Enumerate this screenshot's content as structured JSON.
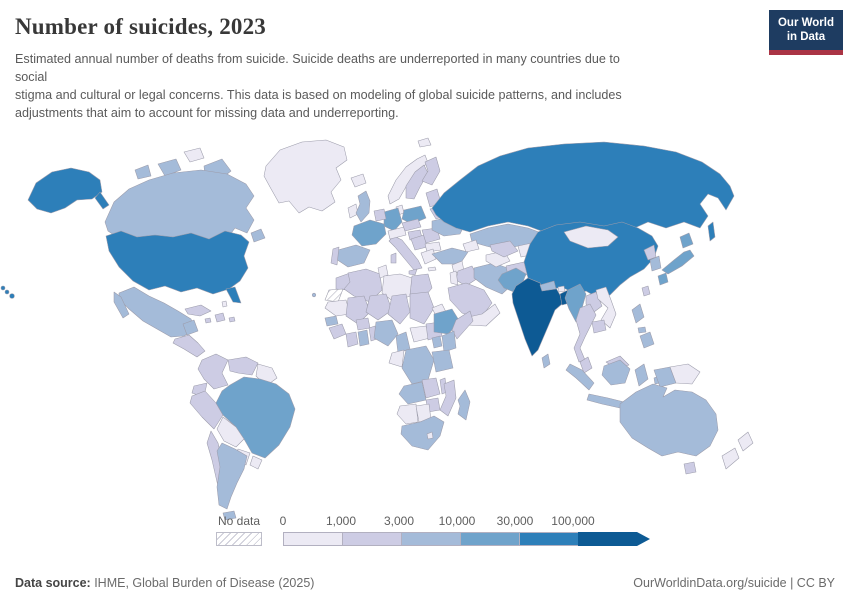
{
  "header": {
    "title": "Number of suicides, 2023",
    "subtitle_lines": [
      "Estimated annual number of deaths from suicide. Suicide deaths are underreported in many countries due to",
      "social",
      "stigma and cultural or legal concerns. This data is based on modeling of global suicide patterns, and includes",
      "adjustments that aim to account for missing data and underreporting."
    ],
    "logo": {
      "line1": "Our World",
      "line2": "in Data",
      "bg": "#1e3c61",
      "accent": "#aa3445"
    }
  },
  "legend": {
    "no_data_label": "No data",
    "tick_labels": [
      "0",
      "1,000",
      "3,000",
      "10,000",
      "30,000",
      "100,000"
    ],
    "bin_colors": [
      "#eceaf4",
      "#cdcce4",
      "#a4bbd9",
      "#6fa3cb",
      "#2d7fb9",
      "#0d5a94"
    ]
  },
  "footer": {
    "source_label": "Data source:",
    "source_text": " IHME, Global Burden of Disease (2025)",
    "right_text": "OurWorldinData.org/suicide | CC BY"
  },
  "chart_data": {
    "type": "choropleth",
    "title": "Number of suicides, 2023",
    "unit": "estimated annual suicide deaths",
    "legend_position": "bottom",
    "bins": [
      {
        "label": "0 – 1,000",
        "color": "#eceaf4"
      },
      {
        "label": "1,000 – 3,000",
        "color": "#cdcce4"
      },
      {
        "label": "3,000 – 10,000",
        "color": "#a4bbd9"
      },
      {
        "label": "10,000 – 30,000",
        "color": "#6fa3cb"
      },
      {
        "label": "30,000 – 100,000",
        "color": "#2d7fb9"
      },
      {
        "label": "100,000+",
        "color": "#0d5a94"
      }
    ],
    "no_data_label": "No data",
    "countries": {
      "greenland": 0,
      "canada": 2,
      "canada-arctic": 2,
      "ellesmere": 0,
      "newfoundland": 2,
      "united-states": 4,
      "mexico": 2,
      "cuba": 1,
      "hispaniola": 1,
      "jamaica": 1,
      "puerto-rico": 1,
      "bahamas": 0,
      "central-america": 1,
      "colombia": 1,
      "venezuela": 1,
      "guyanas": 0,
      "ecuador": 1,
      "peru": 1,
      "brazil": 3,
      "bolivia": 0,
      "paraguay": 0,
      "uruguay": 0,
      "chile": 1,
      "argentina": 2,
      "iceland": 0,
      "ireland": 0,
      "united-kingdom": 2,
      "norway": 0,
      "sweden": 1,
      "finland": 1,
      "denmark": 0,
      "baltics": 1,
      "belarus": 1,
      "poland": 3,
      "germany": 3,
      "benelux": 1,
      "france": 3,
      "spain": 2,
      "portugal": 1,
      "italy": 1,
      "sicily": 1,
      "sardinia": 1,
      "switzerland-austria": 0,
      "czech-slovakia": 1,
      "hungary": 1,
      "balkans": 1,
      "romania": 1,
      "bulgaria": 0,
      "greece": 0,
      "crete": 0,
      "ukraine": 2,
      "svalbard": 0,
      "russia": 4,
      "sakhalin": 4,
      "kazakhstan": 2,
      "caucasus": 0,
      "turkey": 2,
      "syria": 0,
      "iraq": 1,
      "israel-jordan": 0,
      "saudi-arabia": 1,
      "yemen-oman": 0,
      "iran": 2,
      "turkmenistan": 0,
      "uzbekistan": 1,
      "kyrgyz-tajik": 0,
      "afghanistan": 1,
      "pakistan": 3,
      "india": 5,
      "nepal": 2,
      "bhutan": 0,
      "bangladesh": 5,
      "sri-lanka": 2,
      "china": 4,
      "mongolia": 0,
      "taiwan": 1,
      "north-korea": 1,
      "south-korea": 2,
      "japan": 3,
      "myanmar": 3,
      "laos": 1,
      "vietnam": 0,
      "thailand": 1,
      "cambodia": 1,
      "malaysia": 1,
      "malaysia-borneo": 1,
      "indonesia": 2,
      "papua-indonesia": 2,
      "papua-new-guinea": 0,
      "philippines": 2,
      "australia": 2,
      "tasmania": 1,
      "new-zealand": 0,
      "morocco": 1,
      "western-sahara": "no-data",
      "canary-islands": 2,
      "algeria": 1,
      "tunisia": 0,
      "libya": 0,
      "egypt": 1,
      "mauritania": 0,
      "mali": 1,
      "niger": 1,
      "chad": 1,
      "sudan": 1,
      "eritrea": 0,
      "senegal": 2,
      "guinea": 1,
      "ivory-coast": 1,
      "ghana": 2,
      "burkina-faso": 1,
      "benin-togo": 1,
      "nigeria": 2,
      "cameroon": 2,
      "central-african-republic": 0,
      "south-sudan": 1,
      "ethiopia": 3,
      "somalia": 1,
      "uganda": 2,
      "kenya": 2,
      "gabon-congo": 0,
      "dr-congo": 2,
      "tanzania": 2,
      "angola": 2,
      "zambia": 1,
      "malawi": 1,
      "mozambique": 1,
      "zimbabwe": 1,
      "namibia": 0,
      "botswana": 0,
      "south-africa": 2,
      "lesotho": 0,
      "madagascar": 2
    }
  }
}
